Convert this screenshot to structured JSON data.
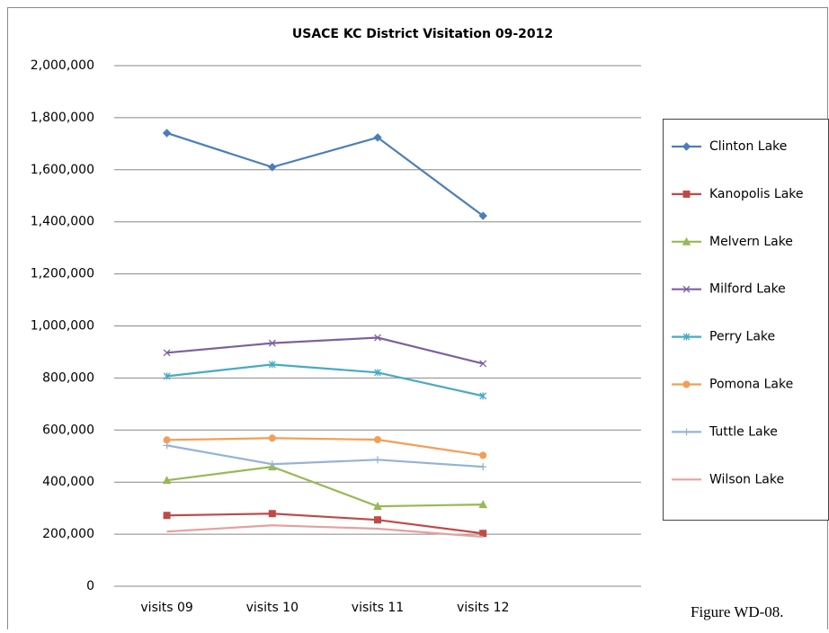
{
  "chart_data": {
    "type": "line",
    "title": "USACE KC District Visitation 09-2012",
    "caption": "Figure WD-08.",
    "categories": [
      "visits 09",
      "visits 10",
      "visits 11",
      "visits 12"
    ],
    "ylim": [
      0,
      2000000
    ],
    "yticks": [
      0,
      {
        "value": 200000,
        "label": "200,000"
      },
      {
        "value": 400000,
        "label": "400,000"
      },
      {
        "value": 600000,
        "label": "600,000"
      },
      {
        "value": 800000,
        "label": "800,000"
      },
      {
        "value": 1000000,
        "label": "1,000,000"
      },
      {
        "value": 1200000,
        "label": "1,200,000"
      },
      {
        "value": 1400000,
        "label": "1,400,000"
      },
      {
        "value": 1600000,
        "label": "1,600,000"
      },
      {
        "value": 1800000,
        "label": "1,800,000"
      },
      {
        "value": 2000000,
        "label": "2,000,000"
      }
    ],
    "grid": true,
    "legend": "right",
    "series": [
      {
        "name": "Clinton Lake",
        "color": "#4a7ebb",
        "marker": "diamond",
        "values": [
          1741000,
          1610000,
          1724000,
          1423000
        ]
      },
      {
        "name": "Kanopolis Lake",
        "color": "#be4b48",
        "marker": "square",
        "values": [
          272000,
          279000,
          255000,
          203000
        ]
      },
      {
        "name": "Melvern Lake",
        "color": "#98b954",
        "marker": "triangle",
        "values": [
          407000,
          459000,
          307000,
          314000
        ]
      },
      {
        "name": "Milford Lake",
        "color": "#7d60a0",
        "marker": "x",
        "values": [
          897000,
          934000,
          955000,
          855000
        ]
      },
      {
        "name": "Perry Lake",
        "color": "#46aac5",
        "marker": "star",
        "values": [
          807000,
          852000,
          821000,
          731000
        ]
      },
      {
        "name": "Pomona Lake",
        "color": "#f59d56",
        "marker": "circle",
        "values": [
          562000,
          569000,
          563000,
          503000
        ]
      },
      {
        "name": "Tuttle  Lake",
        "color": "#95b3d7",
        "marker": "plus",
        "values": [
          541000,
          469000,
          486000,
          459000
        ]
      },
      {
        "name": "Wilson Lake",
        "color": "#e6a0a0",
        "marker": "none",
        "values": [
          210000,
          234000,
          221000,
          190000
        ]
      }
    ]
  }
}
